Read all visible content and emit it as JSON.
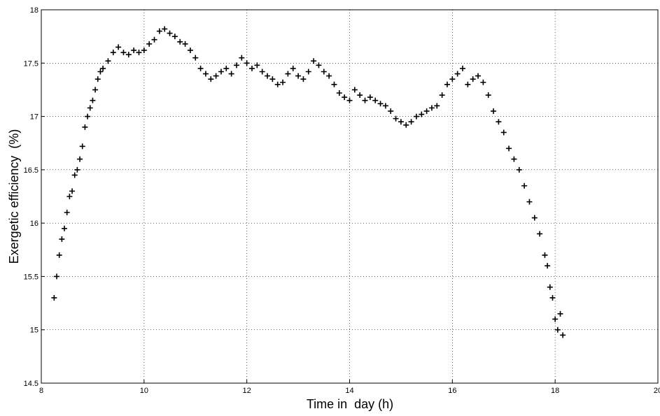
{
  "chart_data": {
    "type": "scatter",
    "xlabel": "Time in  day (h)",
    "ylabel": "Exergetic efficiency  (%)",
    "color": "#000000",
    "grid": true,
    "xlim": [
      8,
      20
    ],
    "xticks": [
      8,
      10,
      12,
      14,
      16,
      18,
      20
    ],
    "ylim": [
      14.5,
      18
    ],
    "yticks": [
      14.5,
      15,
      15.5,
      16,
      16.5,
      17,
      17.5,
      18
    ],
    "x": [
      8.25,
      8.3,
      8.35,
      8.4,
      8.45,
      8.5,
      8.55,
      8.6,
      8.65,
      8.7,
      8.75,
      8.8,
      8.85,
      8.9,
      8.95,
      9.0,
      9.05,
      9.1,
      9.15,
      9.2,
      9.3,
      9.4,
      9.5,
      9.6,
      9.7,
      9.8,
      9.9,
      10.0,
      10.1,
      10.2,
      10.3,
      10.4,
      10.5,
      10.6,
      10.7,
      10.8,
      10.9,
      11.0,
      11.1,
      11.2,
      11.3,
      11.4,
      11.5,
      11.6,
      11.7,
      11.8,
      11.9,
      12.0,
      12.1,
      12.2,
      12.3,
      12.4,
      12.5,
      12.6,
      12.7,
      12.8,
      12.9,
      13.0,
      13.1,
      13.2,
      13.3,
      13.4,
      13.5,
      13.6,
      13.7,
      13.8,
      13.9,
      14.0,
      14.1,
      14.2,
      14.3,
      14.4,
      14.5,
      14.6,
      14.7,
      14.8,
      14.9,
      15.0,
      15.1,
      15.2,
      15.3,
      15.4,
      15.5,
      15.6,
      15.7,
      15.8,
      15.9,
      16.0,
      16.1,
      16.2,
      16.3,
      16.4,
      16.5,
      16.6,
      16.7,
      16.8,
      16.9,
      17.0,
      17.1,
      17.2,
      17.3,
      17.4,
      17.5,
      17.6,
      17.7,
      17.8,
      17.85,
      17.9,
      17.95,
      18.0,
      18.05,
      18.1,
      18.15
    ],
    "values": [
      15.3,
      15.5,
      15.7,
      15.85,
      15.95,
      16.1,
      16.25,
      16.3,
      16.45,
      16.5,
      16.6,
      16.72,
      16.9,
      17.0,
      17.08,
      17.15,
      17.25,
      17.35,
      17.42,
      17.45,
      17.52,
      17.6,
      17.65,
      17.6,
      17.58,
      17.62,
      17.6,
      17.62,
      17.68,
      17.72,
      17.8,
      17.82,
      17.78,
      17.75,
      17.7,
      17.68,
      17.62,
      17.55,
      17.45,
      17.4,
      17.35,
      17.38,
      17.42,
      17.45,
      17.4,
      17.48,
      17.55,
      17.5,
      17.45,
      17.48,
      17.42,
      17.38,
      17.35,
      17.3,
      17.32,
      17.4,
      17.45,
      17.38,
      17.35,
      17.42,
      17.52,
      17.48,
      17.42,
      17.38,
      17.3,
      17.22,
      17.18,
      17.15,
      17.25,
      17.2,
      17.15,
      17.18,
      17.15,
      17.12,
      17.1,
      17.05,
      16.98,
      16.95,
      16.92,
      16.95,
      17.0,
      17.02,
      17.05,
      17.08,
      17.1,
      17.2,
      17.3,
      17.35,
      17.4,
      17.45,
      17.3,
      17.35,
      17.38,
      17.32,
      17.2,
      17.05,
      16.95,
      16.85,
      16.7,
      16.6,
      16.5,
      16.35,
      16.2,
      16.05,
      15.9,
      15.7,
      15.6,
      15.4,
      15.3,
      15.1,
      15.0,
      15.15,
      14.95
    ]
  }
}
